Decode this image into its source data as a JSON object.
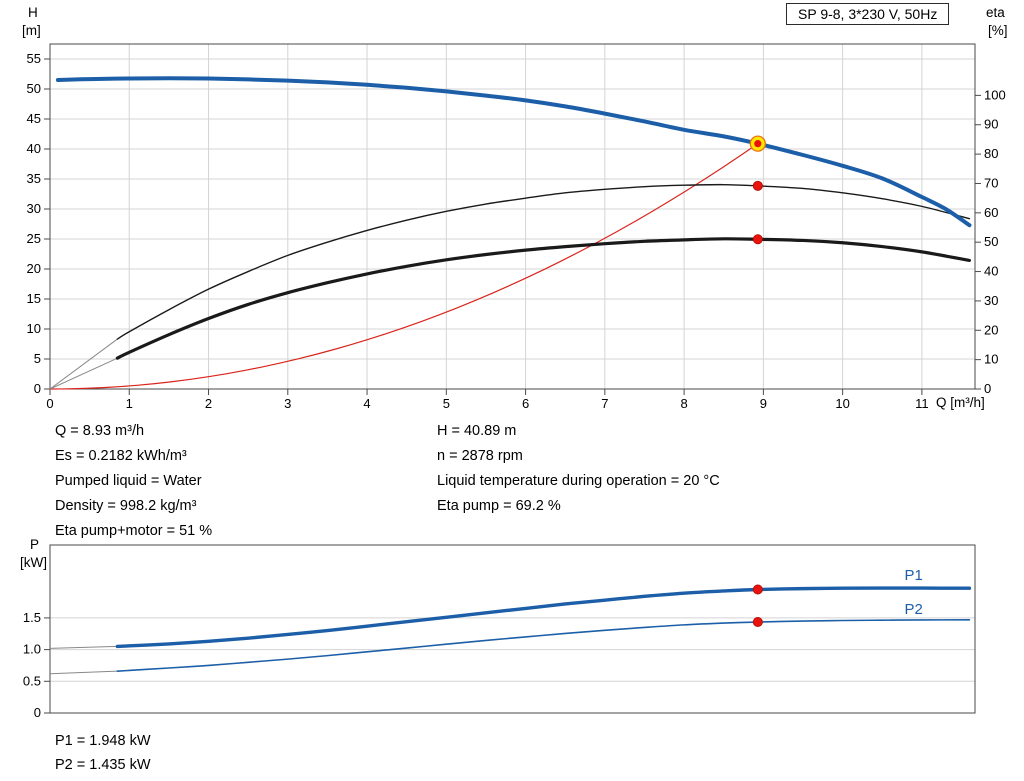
{
  "title_box": "SP 9-8, 3*230 V, 50Hz",
  "colors": {
    "curve_blue": "#1c5fa8",
    "curve_black": "#1a1a1a",
    "system_red": "#d9241b",
    "marker_red": "#e8130c",
    "marker_yellow": "#ffe600",
    "grid": "#d4d4d4",
    "axis": "#4a4a4a"
  },
  "axis_labels": {
    "h": "H",
    "h_unit": "[m]",
    "eta": "eta",
    "eta_unit": "[%]",
    "q": "Q [m³/h]",
    "p": "P",
    "p_unit": "[kW]"
  },
  "info": {
    "left": [
      "Q = 8.93 m³/h",
      "Es = 0.2182 kWh/m³",
      "Pumped liquid = Water",
      "Density = 998.2 kg/m³",
      "Eta pump+motor = 51 %"
    ],
    "right": [
      "H = 40.89 m",
      "n = 2878 rpm",
      "Liquid temperature during operation = 20 °C",
      "Eta pump = 69.2 %"
    ]
  },
  "power_info": [
    "P1 = 1.948 kW",
    "P2 = 1.435 kW"
  ],
  "chart_data": [
    {
      "name": "hq-eta-chart",
      "type": "line",
      "title": "SP 9-8, 3*230 V, 50Hz",
      "xlabel": "Q [m³/h]",
      "xlim": [
        0,
        11.67
      ],
      "x_ticks": [
        0,
        1,
        2,
        3,
        4,
        5,
        6,
        7,
        8,
        9,
        10,
        11
      ],
      "grid": true,
      "left_axis": {
        "label": "H [m]",
        "lim": [
          0,
          57.5
        ],
        "ticks": [
          0,
          5,
          10,
          15,
          20,
          25,
          30,
          35,
          40,
          45,
          50,
          55
        ]
      },
      "right_axis": {
        "label": "eta [%]",
        "lim": [
          0,
          117.5
        ],
        "ticks": [
          0,
          10,
          20,
          30,
          40,
          50,
          60,
          70,
          80,
          90,
          100
        ]
      },
      "series": [
        {
          "name": "system-curve",
          "axis": "left",
          "color": "#d9241b",
          "width": 1.2,
          "parabola": {
            "q": 8.93,
            "h": 40.89,
            "exp": 2
          }
        },
        {
          "name": "eta-pump",
          "axis": "right",
          "color": "#1a1a1a",
          "width": 1.4,
          "lead": [
            [
              0,
              0
            ],
            [
              0.85,
              17
            ]
          ],
          "points": [
            [
              0.85,
              17
            ],
            [
              1,
              19.5
            ],
            [
              1.5,
              27
            ],
            [
              2,
              34
            ],
            [
              2.5,
              40
            ],
            [
              3,
              45.5
            ],
            [
              3.5,
              50
            ],
            [
              4,
              54
            ],
            [
              4.5,
              57.5
            ],
            [
              5,
              60.5
            ],
            [
              5.5,
              63
            ],
            [
              6,
              65
            ],
            [
              6.5,
              66.8
            ],
            [
              7,
              68
            ],
            [
              7.5,
              68.9
            ],
            [
              8,
              69.4
            ],
            [
              8.5,
              69.6
            ],
            [
              8.93,
              69.2
            ],
            [
              9.5,
              68.3
            ],
            [
              10,
              66.8
            ],
            [
              10.5,
              64.8
            ],
            [
              11,
              62.2
            ],
            [
              11.6,
              58
            ]
          ]
        },
        {
          "name": "eta-pump-motor",
          "axis": "right",
          "color": "#1a1a1a",
          "width": 3.2,
          "lead": [
            [
              0,
              0
            ],
            [
              0.85,
              10.5
            ]
          ],
          "points": [
            [
              0.85,
              10.5
            ],
            [
              1,
              12.5
            ],
            [
              1.5,
              18.5
            ],
            [
              2,
              24
            ],
            [
              2.5,
              28.8
            ],
            [
              3,
              32.8
            ],
            [
              3.5,
              36.2
            ],
            [
              4,
              39.2
            ],
            [
              4.5,
              41.8
            ],
            [
              5,
              44
            ],
            [
              5.5,
              45.8
            ],
            [
              6,
              47.3
            ],
            [
              6.5,
              48.5
            ],
            [
              7,
              49.5
            ],
            [
              7.5,
              50.3
            ],
            [
              8,
              50.8
            ],
            [
              8.5,
              51.15
            ],
            [
              8.93,
              51
            ],
            [
              9.5,
              50.6
            ],
            [
              10,
              49.8
            ],
            [
              10.5,
              48.5
            ],
            [
              11,
              46.7
            ],
            [
              11.6,
              43.8
            ]
          ]
        },
        {
          "name": "pump-curve",
          "axis": "left",
          "color": "#1c5fa8",
          "width": 4,
          "points": [
            [
              0.1,
              51.5
            ],
            [
              0.5,
              51.65
            ],
            [
              1,
              51.75
            ],
            [
              1.5,
              51.8
            ],
            [
              2,
              51.75
            ],
            [
              2.5,
              51.6
            ],
            [
              3,
              51.4
            ],
            [
              3.5,
              51.1
            ],
            [
              4,
              50.7
            ],
            [
              4.5,
              50.2
            ],
            [
              5,
              49.6
            ],
            [
              5.5,
              48.9
            ],
            [
              6,
              48.1
            ],
            [
              6.5,
              47.1
            ],
            [
              7,
              45.9
            ],
            [
              7.5,
              44.6
            ],
            [
              8,
              43.2
            ],
            [
              8.5,
              42.1
            ],
            [
              8.93,
              40.89
            ],
            [
              9.5,
              39
            ],
            [
              10,
              37.2
            ],
            [
              10.5,
              35.1
            ],
            [
              11,
              32
            ],
            [
              11.3,
              30
            ],
            [
              11.6,
              27.3
            ]
          ]
        }
      ],
      "markers": [
        {
          "name": "duty-point",
          "axis": "left",
          "q": 8.93,
          "v": 40.89,
          "style": "duty"
        },
        {
          "name": "eta-pump-point",
          "axis": "right",
          "q": 8.93,
          "v": 69.2,
          "style": "dot"
        },
        {
          "name": "eta-pump-motor-point",
          "axis": "right",
          "q": 8.93,
          "v": 51,
          "style": "dot"
        }
      ]
    },
    {
      "name": "power-chart",
      "type": "line",
      "xlabel": "",
      "xlim": [
        0,
        11.67
      ],
      "grid": true,
      "left_axis": {
        "label": "P [kW]",
        "lim": [
          0,
          2.65
        ],
        "ticks": [
          0,
          0.5,
          1,
          1.5
        ],
        "tick_labels": [
          "0",
          "0.5",
          "1.0",
          "1.5"
        ]
      },
      "series": [
        {
          "name": "P1",
          "color": "#1c5fa8",
          "width": 3.4,
          "lead": [
            [
              0,
              1.02
            ],
            [
              0.85,
              1.05
            ]
          ],
          "points": [
            [
              0.85,
              1.05
            ],
            [
              1.5,
              1.09
            ],
            [
              2,
              1.13
            ],
            [
              2.5,
              1.18
            ],
            [
              3,
              1.24
            ],
            [
              3.5,
              1.3
            ],
            [
              4,
              1.37
            ],
            [
              4.5,
              1.44
            ],
            [
              5,
              1.51
            ],
            [
              5.5,
              1.58
            ],
            [
              6,
              1.65
            ],
            [
              6.5,
              1.72
            ],
            [
              7,
              1.78
            ],
            [
              7.5,
              1.84
            ],
            [
              8,
              1.89
            ],
            [
              8.5,
              1.925
            ],
            [
              8.93,
              1.948
            ],
            [
              9.5,
              1.962
            ],
            [
              10,
              1.968
            ],
            [
              10.5,
              1.97
            ],
            [
              11,
              1.97
            ],
            [
              11.6,
              1.968
            ]
          ]
        },
        {
          "name": "P2",
          "color": "#1c5fa8",
          "width": 1.6,
          "lead": [
            [
              0,
              0.62
            ],
            [
              0.85,
              0.66
            ]
          ],
          "points": [
            [
              0.85,
              0.66
            ],
            [
              1.5,
              0.71
            ],
            [
              2,
              0.75
            ],
            [
              2.5,
              0.8
            ],
            [
              3,
              0.85
            ],
            [
              3.5,
              0.905
            ],
            [
              4,
              0.965
            ],
            [
              4.5,
              1.025
            ],
            [
              5,
              1.085
            ],
            [
              5.5,
              1.145
            ],
            [
              6,
              1.2
            ],
            [
              6.5,
              1.255
            ],
            [
              7,
              1.305
            ],
            [
              7.5,
              1.35
            ],
            [
              8,
              1.39
            ],
            [
              8.5,
              1.418
            ],
            [
              8.93,
              1.435
            ],
            [
              9.5,
              1.45
            ],
            [
              10,
              1.459
            ],
            [
              10.5,
              1.464
            ],
            [
              11,
              1.468
            ],
            [
              11.6,
              1.47
            ]
          ]
        }
      ],
      "markers": [
        {
          "name": "p1-point",
          "q": 8.93,
          "v": 1.948,
          "style": "dot"
        },
        {
          "name": "p2-point",
          "q": 8.93,
          "v": 1.435,
          "style": "dot"
        }
      ],
      "labels": [
        {
          "text": "P1",
          "q": 10.78,
          "v": 2.1
        },
        {
          "text": "P2",
          "q": 10.78,
          "v": 1.56
        }
      ]
    }
  ]
}
